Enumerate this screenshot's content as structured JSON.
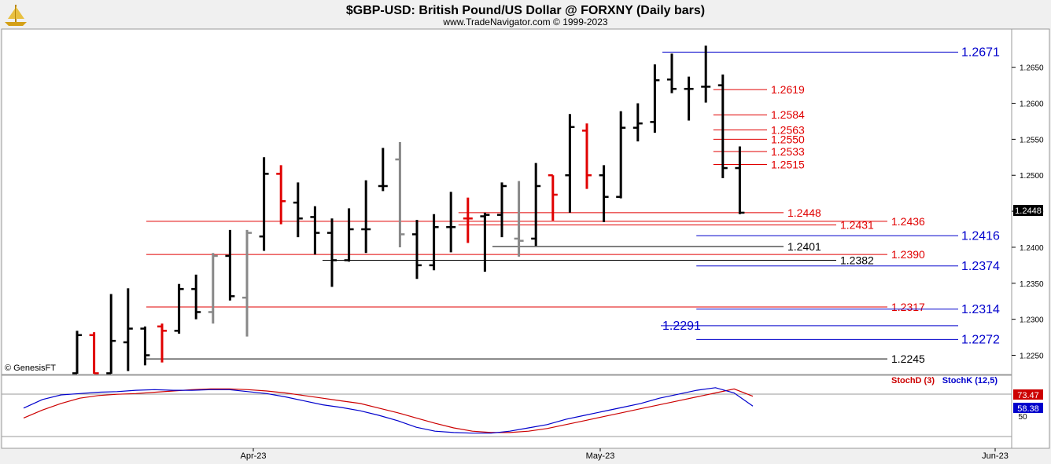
{
  "header": {
    "title": "$GBP-USD:  British Pound/US Dollar @ FORXNY  (Daily bars)",
    "subtitle": "www.TradeNavigator.com © 1999-2023"
  },
  "watermark": "© GenesisFT",
  "logo_icon": "ship-anchor-logo-icon",
  "colors": {
    "up": "#000000",
    "down_red": "#e00000",
    "gray": "#888888",
    "level_red": "#e00000",
    "level_blue": "#0000cc",
    "level_black": "#000000",
    "stoch_d": "#cc0000",
    "stoch_k": "#0000cc",
    "last_price_bg": "#000000"
  },
  "chart_data": [
    {
      "type": "ohlc",
      "title": "$GBP-USD:  British Pound/US Dollar @ FORXNY  (Daily bars)",
      "x_labels": [
        "Apr-23",
        "May-23",
        "Jun-23"
      ],
      "y_ticks": [
        "1.2650",
        "1.2600",
        "1.2550",
        "1.2500",
        "1.2450",
        "1.2400",
        "1.2350",
        "1.2300",
        "1.2250"
      ],
      "ylim": [
        1.2232,
        1.269
      ],
      "last_price": "1.2448",
      "bars": [
        {
          "o": 1.2225,
          "h": 1.2284,
          "l": 1.221,
          "c": 1.2278,
          "color": "black"
        },
        {
          "o": 1.2278,
          "h": 1.2282,
          "l": 1.2218,
          "c": 1.2225,
          "color": "red"
        },
        {
          "o": 1.2225,
          "h": 1.2335,
          "l": 1.2215,
          "c": 1.227,
          "color": "black"
        },
        {
          "o": 1.2268,
          "h": 1.2343,
          "l": 1.2228,
          "c": 1.2287,
          "color": "black"
        },
        {
          "o": 1.2287,
          "h": 1.229,
          "l": 1.2236,
          "c": 1.225,
          "color": "black"
        },
        {
          "o": 1.229,
          "h": 1.2294,
          "l": 1.224,
          "c": 1.2284,
          "color": "red"
        },
        {
          "o": 1.2284,
          "h": 1.2349,
          "l": 1.228,
          "c": 1.2342,
          "color": "black"
        },
        {
          "o": 1.2342,
          "h": 1.2362,
          "l": 1.23,
          "c": 1.231,
          "color": "black"
        },
        {
          "o": 1.231,
          "h": 1.2392,
          "l": 1.2294,
          "c": 1.2388,
          "color": "gray"
        },
        {
          "o": 1.2388,
          "h": 1.2424,
          "l": 1.2326,
          "c": 1.2332,
          "color": "black"
        },
        {
          "o": 1.233,
          "h": 1.2424,
          "l": 1.2276,
          "c": 1.242,
          "color": "gray"
        },
        {
          "o": 1.2415,
          "h": 1.2525,
          "l": 1.2395,
          "c": 1.2502,
          "color": "black"
        },
        {
          "o": 1.2502,
          "h": 1.2514,
          "l": 1.2432,
          "c": 1.2464,
          "color": "red"
        },
        {
          "o": 1.2462,
          "h": 1.249,
          "l": 1.2414,
          "c": 1.244,
          "color": "black"
        },
        {
          "o": 1.2442,
          "h": 1.2457,
          "l": 1.239,
          "c": 1.242,
          "color": "black"
        },
        {
          "o": 1.242,
          "h": 1.244,
          "l": 1.2345,
          "c": 1.2382,
          "color": "black"
        },
        {
          "o": 1.2382,
          "h": 1.2454,
          "l": 1.238,
          "c": 1.2425,
          "color": "black"
        },
        {
          "o": 1.2425,
          "h": 1.2493,
          "l": 1.2392,
          "c": 1.2425,
          "color": "black"
        },
        {
          "o": 1.2485,
          "h": 1.2538,
          "l": 1.2478,
          "c": 1.2485,
          "color": "black"
        },
        {
          "o": 1.2522,
          "h": 1.2546,
          "l": 1.24,
          "c": 1.2418,
          "color": "gray"
        },
        {
          "o": 1.2418,
          "h": 1.2438,
          "l": 1.2356,
          "c": 1.2375,
          "color": "black"
        },
        {
          "o": 1.2375,
          "h": 1.2446,
          "l": 1.2368,
          "c": 1.2428,
          "color": "black"
        },
        {
          "o": 1.2428,
          "h": 1.2477,
          "l": 1.2393,
          "c": 1.2428,
          "color": "black"
        },
        {
          "o": 1.244,
          "h": 1.2469,
          "l": 1.2406,
          "c": 1.244,
          "color": "red"
        },
        {
          "o": 1.2443,
          "h": 1.2448,
          "l": 1.2366,
          "c": 1.2445,
          "color": "black"
        },
        {
          "o": 1.2445,
          "h": 1.249,
          "l": 1.2414,
          "c": 1.2485,
          "color": "black"
        },
        {
          "o": 1.2412,
          "h": 1.2492,
          "l": 1.2387,
          "c": 1.2409,
          "color": "gray"
        },
        {
          "o": 1.2412,
          "h": 1.2517,
          "l": 1.2402,
          "c": 1.2485,
          "color": "black"
        },
        {
          "o": 1.25,
          "h": 1.25,
          "l": 1.2437,
          "c": 1.2473,
          "color": "red"
        },
        {
          "o": 1.25,
          "h": 1.2585,
          "l": 1.2448,
          "c": 1.2567,
          "color": "black"
        },
        {
          "o": 1.2562,
          "h": 1.2572,
          "l": 1.2481,
          "c": 1.25,
          "color": "red"
        },
        {
          "o": 1.25,
          "h": 1.2514,
          "l": 1.2435,
          "c": 1.247,
          "color": "black"
        },
        {
          "o": 1.247,
          "h": 1.2589,
          "l": 1.2468,
          "c": 1.2566,
          "color": "black"
        },
        {
          "o": 1.2566,
          "h": 1.26,
          "l": 1.2547,
          "c": 1.2572,
          "color": "black"
        },
        {
          "o": 1.2574,
          "h": 1.2654,
          "l": 1.2559,
          "c": 1.2632,
          "color": "black"
        },
        {
          "o": 1.2633,
          "h": 1.2669,
          "l": 1.2614,
          "c": 1.262,
          "color": "black"
        },
        {
          "o": 1.262,
          "h": 1.2637,
          "l": 1.2576,
          "c": 1.262,
          "color": "black"
        },
        {
          "o": 1.2623,
          "h": 1.268,
          "l": 1.2601,
          "c": 1.2623,
          "color": "black"
        },
        {
          "o": 1.2625,
          "h": 1.264,
          "l": 1.2496,
          "c": 1.251,
          "color": "black"
        },
        {
          "o": 1.251,
          "h": 1.254,
          "l": 1.2446,
          "c": 1.2448,
          "color": "black"
        }
      ],
      "levels": [
        {
          "value": "1.2671",
          "y": 1.2671,
          "color": "blue",
          "from_bar": 35,
          "label_pos": "right"
        },
        {
          "value": "1.2619",
          "y": 1.2619,
          "color": "red",
          "from_bar": 38,
          "label_pos": "mid"
        },
        {
          "value": "1.2584",
          "y": 1.2584,
          "color": "red",
          "from_bar": 38,
          "label_pos": "mid"
        },
        {
          "value": "1.2563",
          "y": 1.2563,
          "color": "red",
          "from_bar": 38,
          "label_pos": "mid"
        },
        {
          "value": "1.2550",
          "y": 1.255,
          "color": "red",
          "from_bar": 38,
          "label_pos": "mid"
        },
        {
          "value": "1.2533",
          "y": 1.2533,
          "color": "red",
          "from_bar": 38,
          "label_pos": "mid"
        },
        {
          "value": "1.2515",
          "y": 1.2515,
          "color": "red",
          "from_bar": 38,
          "label_pos": "mid"
        },
        {
          "value": "1.2448",
          "y": 1.2448,
          "color": "red",
          "from_bar": 23,
          "label_pos": "near"
        },
        {
          "value": "1.2436",
          "y": 1.2436,
          "color": "red",
          "from_bar": 5,
          "label_pos": "far"
        },
        {
          "value": "1.2431",
          "y": 1.2431,
          "color": "red",
          "from_bar": 23,
          "label_pos": "near2"
        },
        {
          "value": "1.2416",
          "y": 1.2416,
          "color": "blue",
          "from_bar": 37,
          "label_pos": "right"
        },
        {
          "value": "1.2401",
          "y": 1.2401,
          "color": "black",
          "from_bar": 25,
          "label_pos": "near"
        },
        {
          "value": "1.2390",
          "y": 1.239,
          "color": "red",
          "from_bar": 5,
          "label_pos": "far"
        },
        {
          "value": "1.2382",
          "y": 1.2382,
          "color": "black",
          "from_bar": 15,
          "label_pos": "near2"
        },
        {
          "value": "1.2374",
          "y": 1.2374,
          "color": "blue",
          "from_bar": 37,
          "label_pos": "right"
        },
        {
          "value": "1.2317",
          "y": 1.2317,
          "color": "red",
          "from_bar": 5,
          "label_pos": "far"
        },
        {
          "value": "1.2314",
          "y": 1.2314,
          "color": "blue",
          "from_bar": 37,
          "label_pos": "right"
        },
        {
          "value": "1.2291",
          "y": 1.2291,
          "color": "blue",
          "from_bar": 35,
          "label_pos": "left"
        },
        {
          "value": "1.2272",
          "y": 1.2272,
          "color": "blue",
          "from_bar": 37,
          "label_pos": "right"
        },
        {
          "value": "1.2245",
          "y": 1.2245,
          "color": "black",
          "from_bar": 5,
          "label_pos": "far"
        }
      ]
    },
    {
      "type": "line",
      "legend": [
        "StochD (3)",
        "StochK (12,5)"
      ],
      "last_values": {
        "stoch_d": "73.47",
        "stoch_k": "58.38"
      },
      "y_tick": "50",
      "ylim": [
        0,
        100
      ],
      "series": [
        {
          "name": "StochD (3)",
          "values": [
            40,
            52,
            62,
            70,
            74,
            76,
            77,
            79,
            81,
            83,
            84,
            84,
            83,
            81,
            78,
            74,
            70,
            66,
            62,
            55,
            48,
            40,
            32,
            25,
            20,
            18,
            18,
            20,
            24,
            30,
            36,
            42,
            48,
            54,
            60,
            66,
            72,
            78,
            84,
            73
          ]
        },
        {
          "name": "StochK (12,5)",
          "values": [
            55,
            68,
            75,
            77,
            79,
            80,
            82,
            83,
            82,
            82,
            83,
            83,
            80,
            77,
            72,
            66,
            60,
            56,
            51,
            44,
            36,
            26,
            20,
            18,
            17,
            17,
            20,
            25,
            30,
            38,
            44,
            50,
            56,
            62,
            70,
            76,
            82,
            86,
            78,
            58
          ]
        }
      ]
    }
  ]
}
